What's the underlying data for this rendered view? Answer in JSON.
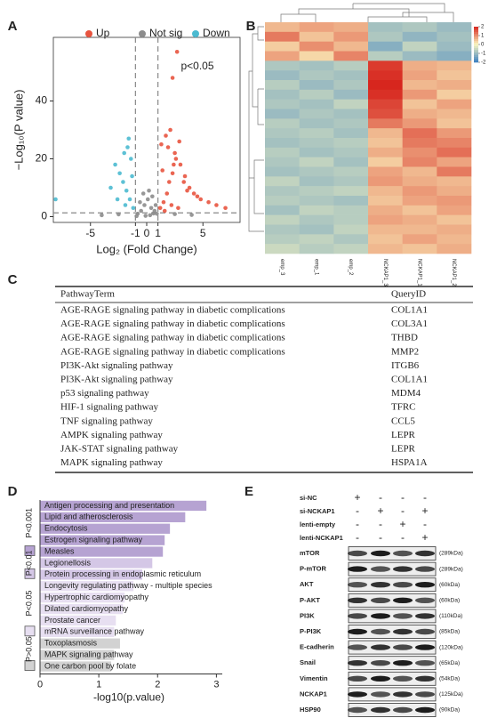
{
  "panel_labels": [
    "A",
    "B",
    "C",
    "D",
    "E"
  ],
  "chart_data": [
    {
      "type": "scatter",
      "xlabel": "Log₂ (Fold Change)",
      "ylabel": "−Log₁₀(P value)",
      "annotation": "p<0.05",
      "legend": "top",
      "xlim": [
        -8.3,
        8.3
      ],
      "xticks": [
        -5,
        -1,
        0,
        1,
        5
      ],
      "ylim": [
        -2,
        62
      ],
      "yticks": [
        0,
        20,
        40
      ],
      "threshold_x": [
        -1,
        1
      ],
      "threshold_y": 1.3,
      "series": [
        {
          "name": "Up",
          "color": "#e8543f",
          "x": [
            1.2,
            1.5,
            1.8,
            2.0,
            2.3,
            2.6,
            3.0,
            3.4,
            3.8,
            4.2,
            4.8,
            5.5,
            6.2,
            7.0,
            1.3,
            1.7,
            2.1,
            2.5,
            2.9,
            3.3,
            1.4,
            1.9,
            2.4,
            2.7,
            2.3,
            3.6,
            4.5,
            1.6,
            2.2,
            2.8
          ],
          "y": [
            3,
            5,
            8,
            12,
            15,
            20,
            18,
            14,
            10,
            8,
            6,
            5,
            4,
            3,
            25,
            28,
            30,
            22,
            26,
            12,
            16,
            24,
            18,
            57,
            48,
            9,
            7,
            2,
            4,
            3
          ]
        },
        {
          "name": "Not sig",
          "color": "#8c8c8c",
          "x": [
            -0.8,
            -0.5,
            -0.2,
            0.1,
            0.4,
            0.7,
            0.9,
            -0.6,
            -0.3,
            0.2,
            0.5,
            0.8,
            -2.5,
            -4,
            2.5,
            4,
            -0.1,
            0.3,
            -0.9,
            0.6
          ],
          "y": [
            1,
            2,
            4,
            6,
            3,
            2,
            1,
            5,
            8,
            9,
            7,
            4,
            0.8,
            0.5,
            0.9,
            0.6,
            0.3,
            0.5,
            0.2,
            1.1
          ]
        },
        {
          "name": "Down",
          "color": "#4bbad0",
          "x": [
            -1.2,
            -1.5,
            -1.8,
            -2.1,
            -2.4,
            -2.8,
            -3.2,
            -1.4,
            -1.7,
            -2.0,
            -1.3,
            -1.6,
            -2.6,
            -8.1,
            -1.9
          ],
          "y": [
            3,
            6,
            9,
            12,
            15,
            18,
            10,
            20,
            24,
            22,
            14,
            27,
            6,
            6,
            4
          ]
        }
      ]
    },
    {
      "type": "heatmap",
      "columns": [
        "emp_3",
        "emp_1",
        "emp_2",
        "NCKAP1_3",
        "NCKAP1_1",
        "NCKAP1_2"
      ],
      "clim": [
        -2,
        2
      ],
      "cticks": [
        2,
        1,
        0,
        -1,
        -2
      ],
      "colorscale": [
        "#3a7fc1",
        "#fbf7c0",
        "#d7261e"
      ],
      "values": [
        [
          0.6,
          0.8,
          0.7,
          -0.9,
          -0.8,
          -1.0
        ],
        [
          1.2,
          0.5,
          0.9,
          -0.8,
          -1.1,
          -0.9
        ],
        [
          0.4,
          1.0,
          0.6,
          -1.2,
          -0.6,
          -1.0
        ],
        [
          0.8,
          0.3,
          1.1,
          -0.7,
          -1.0,
          -1.2
        ],
        [
          -0.8,
          -0.9,
          -0.7,
          1.8,
          0.7,
          0.6
        ],
        [
          -1.0,
          -0.8,
          -0.9,
          1.9,
          0.8,
          0.5
        ],
        [
          -0.7,
          -1.0,
          -0.8,
          2.0,
          0.6,
          0.7
        ],
        [
          -0.9,
          -0.7,
          -1.0,
          1.9,
          0.9,
          0.4
        ],
        [
          -0.8,
          -0.9,
          -0.6,
          1.7,
          0.5,
          0.8
        ],
        [
          -1.0,
          -0.8,
          -0.9,
          1.6,
          0.7,
          0.6
        ],
        [
          -0.7,
          -0.9,
          -0.8,
          1.2,
          0.9,
          0.5
        ],
        [
          -0.8,
          -0.7,
          -0.9,
          0.6,
          1.3,
          0.9
        ],
        [
          -0.9,
          -0.8,
          -0.7,
          0.5,
          1.2,
          1.1
        ],
        [
          -0.7,
          -0.9,
          -0.8,
          0.7,
          1.0,
          1.3
        ],
        [
          -0.8,
          -0.6,
          -0.9,
          0.4,
          1.1,
          0.8
        ],
        [
          -0.9,
          -0.8,
          -0.7,
          0.8,
          0.6,
          1.2
        ],
        [
          -0.6,
          -0.9,
          -0.8,
          0.9,
          0.7,
          0.6
        ],
        [
          -0.8,
          -0.7,
          -0.6,
          0.6,
          0.9,
          0.7
        ],
        [
          -0.7,
          -0.8,
          -0.9,
          0.5,
          0.8,
          0.9
        ],
        [
          -0.9,
          -0.6,
          -0.7,
          0.7,
          0.5,
          0.8
        ],
        [
          -0.6,
          -0.8,
          -0.7,
          0.8,
          0.7,
          0.5
        ],
        [
          -0.8,
          -0.9,
          -0.6,
          0.6,
          0.6,
          0.7
        ],
        [
          -0.7,
          -0.6,
          -0.8,
          0.5,
          0.8,
          0.6
        ],
        [
          -0.5,
          -0.7,
          -0.6,
          0.6,
          0.5,
          0.7
        ]
      ]
    },
    {
      "type": "barh",
      "xlabel": "-log10(p.value)",
      "xlim": [
        0,
        3.1
      ],
      "xticks": [
        0,
        1,
        2,
        3
      ],
      "series": [
        {
          "name": "P<0.001",
          "color": "#b6a3d2",
          "categories": [
            "Antigen processing and presentation",
            "Lipid and atherosclerosis",
            "Endocytosis",
            "Estrogen signaling pathway",
            "Measles"
          ],
          "values": [
            2.83,
            2.47,
            2.21,
            2.12,
            2.09
          ]
        },
        {
          "name": "P<0.01",
          "color": "#d4c7e6",
          "categories": [
            "Legionellosis",
            "Protein processing in endoplasmic reticulum"
          ],
          "values": [
            1.91,
            1.74
          ]
        },
        {
          "name": "P<0.05",
          "color": "#e7dff1",
          "categories": [
            "Longevity regulating pathway - multiple species",
            "Hypertrophic cardiomyopathy",
            "Dilated cardiomyopathy",
            "Prostate cancer",
            "mRNA surveillance pathway"
          ],
          "values": [
            1.59,
            1.44,
            1.41,
            1.29,
            1.26
          ]
        },
        {
          "name": "P>0.05",
          "color": "#d2d2d2",
          "categories": [
            "Toxoplasmosis",
            "MAPK signaling pathway",
            "One carbon pool by folate"
          ],
          "values": [
            1.36,
            1.26,
            1.21
          ]
        }
      ]
    }
  ],
  "table": {
    "header": [
      "PathwayTerm",
      "QueryID"
    ],
    "rows": [
      [
        "AGE-RAGE signaling pathway in diabetic complications",
        "COL1A1"
      ],
      [
        "AGE-RAGE signaling pathway in diabetic complications",
        "COL3A1"
      ],
      [
        "AGE-RAGE signaling pathway in diabetic complications",
        "THBD"
      ],
      [
        "AGE-RAGE signaling pathway in diabetic complications",
        "MMP2"
      ],
      [
        "PI3K-Akt signaling pathway",
        "ITGB6"
      ],
      [
        "PI3K-Akt signaling pathway",
        "COL1A1"
      ],
      [
        "p53 signaling pathway",
        "MDM4"
      ],
      [
        "HIF-1 signaling pathway",
        "TFRC"
      ],
      [
        "TNF signaling pathway",
        "CCL5"
      ],
      [
        "AMPK signaling pathway",
        "LEPR"
      ],
      [
        "JAK-STAT signaling pathway",
        "LEPR"
      ],
      [
        "MAPK signaling pathway",
        "HSPA1A"
      ]
    ]
  },
  "blot": {
    "conditions": [
      {
        "name": "si-NC",
        "lanes": [
          "+",
          "-",
          "-",
          "-"
        ]
      },
      {
        "name": "si-NCKAP1",
        "lanes": [
          "-",
          "+",
          "-",
          "+"
        ]
      },
      {
        "name": "lenti-empty",
        "lanes": [
          "-",
          "-",
          "+",
          "-"
        ]
      },
      {
        "name": "lenti-NCKAP1",
        "lanes": [
          "-",
          "-",
          "-",
          "+"
        ]
      }
    ],
    "proteins": [
      {
        "name": "mTOR",
        "size": "(289kDa)"
      },
      {
        "name": "P-mTOR",
        "size": "(289kDa)"
      },
      {
        "name": "AKT",
        "size": "(60kDa)"
      },
      {
        "name": "P-AKT",
        "size": "(60kDa)"
      },
      {
        "name": "PI3K",
        "size": "(110kDa)"
      },
      {
        "name": "P-PI3K",
        "size": "(85kDa)"
      },
      {
        "name": "E-cadherin",
        "size": "(120kDa)"
      },
      {
        "name": "Snail",
        "size": "(65kDa)"
      },
      {
        "name": "Vimentin",
        "size": "(54kDa)"
      },
      {
        "name": "NCKAP1",
        "size": "(125kDa)"
      },
      {
        "name": "HSP90",
        "size": "(90kDa)"
      }
    ]
  }
}
